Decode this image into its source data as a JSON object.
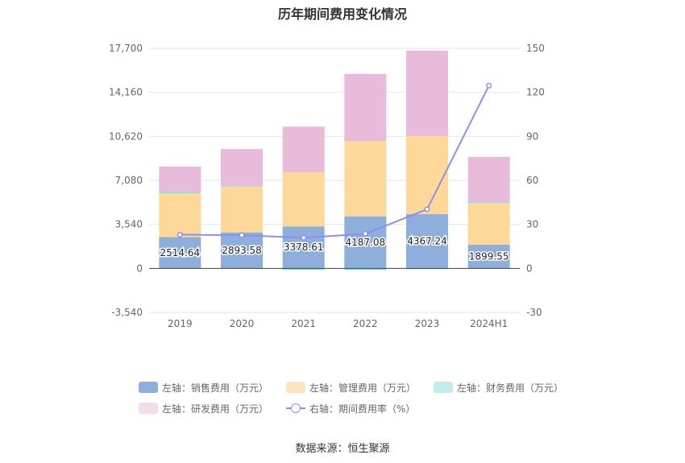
{
  "chart_data": {
    "type": "bar",
    "stacked": true,
    "title": "历年期间费用变化情况",
    "categories": [
      "2019",
      "2020",
      "2021",
      "2022",
      "2023",
      "2024H1"
    ],
    "left_axis": {
      "ticks": [
        "17,700",
        "14,160",
        "10,620",
        "7,080",
        "3,540",
        "0",
        "-3,540"
      ],
      "min": -3540,
      "max": 17700
    },
    "right_axis": {
      "ticks": [
        "150",
        "120",
        "90",
        "60",
        "30",
        "0",
        "-30"
      ],
      "min": -30,
      "max": 150
    },
    "series": [
      {
        "name": "左轴：销售费用（万元）",
        "axis": "left",
        "color": "#8eaedc",
        "values": [
          2514.64,
          2893.58,
          3378.61,
          4187.08,
          4367.24,
          1899.55
        ],
        "labels": [
          "2514.64",
          "2893.58",
          "3378.61",
          "4187.08",
          "4367.24",
          "1899.55"
        ]
      },
      {
        "name": "左轴：管理费用（万元）",
        "axis": "left",
        "color": "#fed898",
        "values": [
          3520,
          3690,
          4350,
          6050,
          6280,
          3360
        ]
      },
      {
        "name": "左轴：财务费用（万元）",
        "axis": "left",
        "color": "#8fdcdc",
        "values": [
          130,
          70,
          -120,
          -130,
          -60,
          110
        ]
      },
      {
        "name": "左轴：研发费用（万元）",
        "axis": "left",
        "color": "#e8bbdb",
        "values": [
          2030,
          2950,
          3670,
          5410,
          6870,
          3600
        ]
      },
      {
        "name": "右轴：期间费用率（%）",
        "axis": "right",
        "type": "line",
        "color": "#8b8ff0",
        "values": [
          23,
          22.6,
          20.9,
          23.6,
          40.3,
          124.6
        ]
      }
    ],
    "legend_position": "bottom",
    "grid": true
  },
  "source": "数据来源：恒生聚源"
}
